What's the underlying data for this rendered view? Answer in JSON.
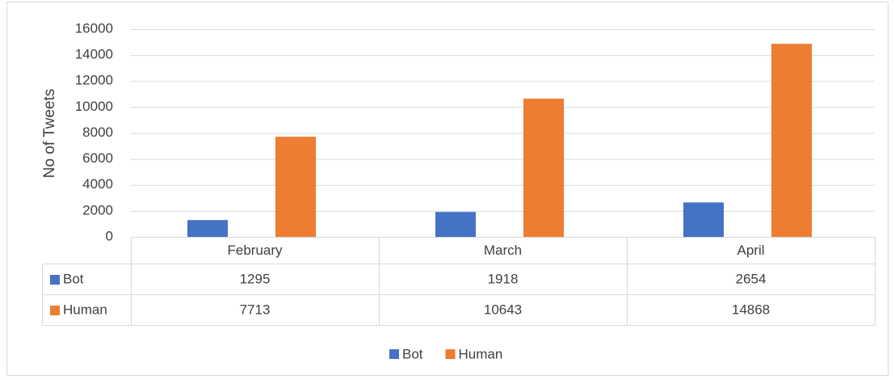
{
  "chart_data": {
    "type": "bar",
    "y_label": "No of Tweets",
    "categories": [
      "February",
      "March",
      "April"
    ],
    "series": [
      {
        "name": "Bot",
        "color": "#4472c4",
        "values": [
          1295,
          1918,
          2654
        ]
      },
      {
        "name": "Human",
        "color": "#ed7d31",
        "values": [
          7713,
          10643,
          14868
        ]
      }
    ],
    "ylim": [
      0,
      16000
    ],
    "yticks": [
      0,
      2000,
      4000,
      6000,
      8000,
      10000,
      12000,
      14000,
      16000
    ],
    "grid": true,
    "legend": "bottom",
    "data_table": true
  }
}
